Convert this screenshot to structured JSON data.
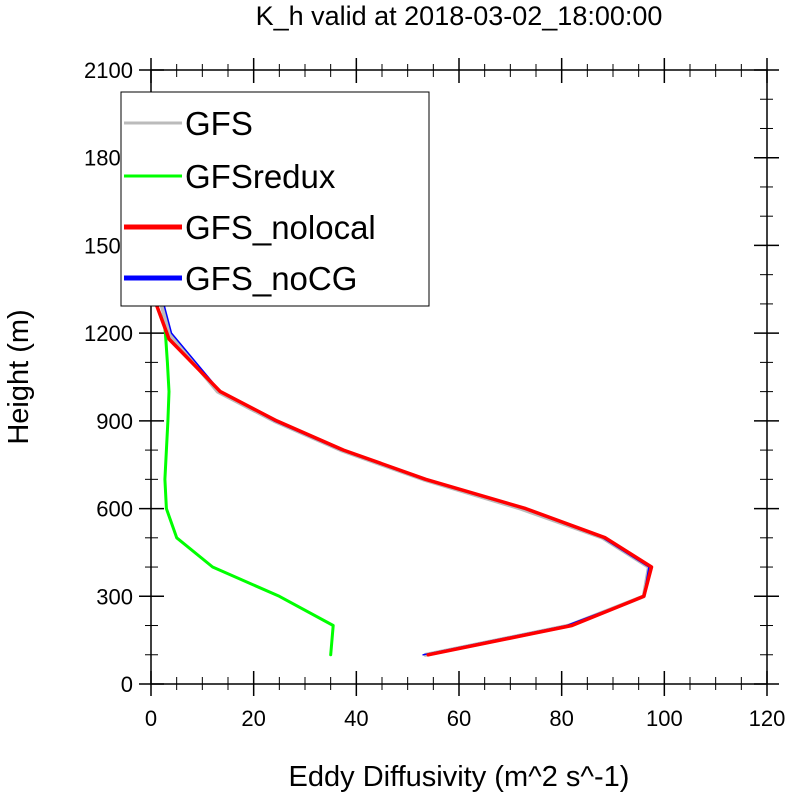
{
  "chart_data": {
    "type": "line",
    "title": "K_h valid at 2018-03-02_18:00:00",
    "xlabel": "Eddy Diffusivity (m^2 s^-1)",
    "ylabel": "Height (m)",
    "xlim": [
      0,
      120
    ],
    "ylim": [
      0,
      2100
    ],
    "xticks": [
      0,
      20,
      40,
      60,
      80,
      100,
      120
    ],
    "yticks": [
      0,
      300,
      600,
      900,
      1200,
      1500,
      1800,
      2100
    ],
    "x_minor_step": 5,
    "y_minor_step": 100,
    "grid": false,
    "legend_position": "top-left",
    "series": [
      {
        "name": "GFS",
        "color": "#bbbbbb",
        "points": [
          [
            53.5,
            100
          ],
          [
            81.5,
            200
          ],
          [
            96,
            300
          ],
          [
            97,
            400
          ],
          [
            88,
            500
          ],
          [
            72,
            600
          ],
          [
            53,
            700
          ],
          [
            37,
            800
          ],
          [
            24,
            900
          ],
          [
            13,
            1000
          ],
          [
            3.5,
            1200
          ],
          [
            2,
            1300
          ],
          [
            1.5,
            1500
          ],
          [
            1,
            1700
          ],
          [
            0.7,
            1900
          ],
          [
            0.5,
            2000
          ]
        ]
      },
      {
        "name": "GFSredux",
        "color": "#00ff00",
        "points": [
          [
            35,
            100
          ],
          [
            35.5,
            200
          ],
          [
            25,
            300
          ],
          [
            12,
            400
          ],
          [
            5,
            500
          ],
          [
            3,
            600
          ],
          [
            2.7,
            700
          ],
          [
            3,
            800
          ],
          [
            3.3,
            900
          ],
          [
            3.5,
            1000
          ],
          [
            3.2,
            1100
          ],
          [
            2.8,
            1200
          ],
          [
            2.2,
            1300
          ],
          [
            1.8,
            1500
          ],
          [
            1.2,
            1700
          ],
          [
            0.8,
            1900
          ],
          [
            0.6,
            2000
          ]
        ]
      },
      {
        "name": "GFS_nolocal",
        "color": "#ff0000",
        "points": [
          [
            54,
            100
          ],
          [
            82,
            200
          ],
          [
            96,
            300
          ],
          [
            97.5,
            400
          ],
          [
            88.5,
            500
          ],
          [
            73,
            600
          ],
          [
            53.5,
            700
          ],
          [
            37.5,
            800
          ],
          [
            24.5,
            900
          ],
          [
            13.5,
            1000
          ],
          [
            3.5,
            1180
          ],
          [
            1,
            1300
          ],
          [
            0.6,
            1500
          ],
          [
            0.4,
            1700
          ],
          [
            0.3,
            1900
          ],
          [
            0.3,
            2000
          ]
        ]
      },
      {
        "name": "GFS_noCG",
        "color": "#0000ff",
        "points": [
          [
            53,
            100
          ],
          [
            81,
            200
          ],
          [
            96,
            300
          ],
          [
            97,
            400
          ],
          [
            88,
            500
          ],
          [
            72.5,
            600
          ],
          [
            53,
            700
          ],
          [
            37,
            800
          ],
          [
            24,
            900
          ],
          [
            13.5,
            1000
          ],
          [
            4,
            1200
          ],
          [
            2.5,
            1300
          ],
          [
            2,
            1500
          ],
          [
            1.5,
            1700
          ],
          [
            1,
            1900
          ],
          [
            1,
            2000
          ]
        ]
      }
    ]
  }
}
